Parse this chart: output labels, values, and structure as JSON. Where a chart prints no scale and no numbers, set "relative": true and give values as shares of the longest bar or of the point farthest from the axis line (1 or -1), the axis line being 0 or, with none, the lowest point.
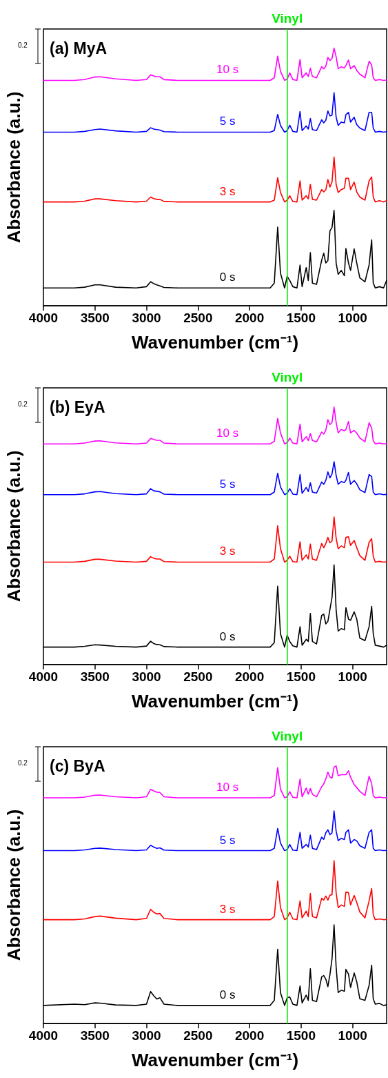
{
  "chart_data": [
    {
      "type": "line",
      "title": "(a) MyA",
      "xlabel": "Wavenumber (cm⁻¹)",
      "ylabel": "Absorbance (a.u.)",
      "relative": true,
      "line_style": "solid",
      "marker": "none",
      "xlim": [
        4000,
        670
      ],
      "xticks": [
        4000,
        3500,
        3000,
        2500,
        2000,
        1500,
        1000
      ],
      "ref_lines": [
        {
          "axis": "x",
          "value": 1635,
          "label": "Vinyl",
          "color": "#00ee00"
        }
      ],
      "annotations": [
        "0.2"
      ],
      "x": [
        4000,
        3700,
        3600,
        3500,
        3450,
        3300,
        3100,
        3000,
        2960,
        2930,
        2900,
        2870,
        2830,
        2700,
        2000,
        1800,
        1760,
        1727,
        1700,
        1660,
        1635,
        1610,
        1580,
        1540,
        1510,
        1490,
        1450,
        1430,
        1410,
        1390,
        1350,
        1300,
        1280,
        1260,
        1240,
        1220,
        1200,
        1180,
        1160,
        1140,
        1110,
        1080,
        1065,
        1040,
        1020,
        985,
        960,
        930,
        880,
        840,
        815,
        800,
        780,
        740,
        700,
        670
      ],
      "series": [
        {
          "name": "0 s",
          "color": "#000000",
          "values": [
            0.069,
            0.069,
            0.072,
            0.081,
            0.081,
            0.072,
            0.069,
            0.074,
            0.093,
            0.086,
            0.081,
            0.077,
            0.071,
            0.069,
            0.069,
            0.069,
            0.088,
            0.305,
            0.127,
            0.069,
            0.114,
            0.098,
            0.074,
            0.069,
            0.158,
            0.074,
            0.148,
            0.098,
            0.206,
            0.088,
            0.083,
            0.177,
            0.204,
            0.166,
            0.175,
            0.291,
            0.303,
            0.37,
            0.166,
            0.122,
            0.137,
            0.117,
            0.222,
            0.166,
            0.137,
            0.221,
            0.166,
            0.108,
            0.093,
            0.158,
            0.256,
            0.088,
            0.069,
            0.074,
            0.069,
            0.098
          ]
        },
        {
          "name": "3 s",
          "color": "#ff0000",
          "values": [
            0.403,
            0.403,
            0.406,
            0.415,
            0.415,
            0.408,
            0.403,
            0.406,
            0.422,
            0.416,
            0.413,
            0.413,
            0.405,
            0.403,
            0.403,
            0.403,
            0.41,
            0.497,
            0.44,
            0.403,
            0.41,
            0.427,
            0.405,
            0.403,
            0.485,
            0.41,
            0.427,
            0.415,
            0.471,
            0.413,
            0.41,
            0.451,
            0.442,
            0.45,
            0.49,
            0.461,
            0.48,
            0.577,
            0.471,
            0.44,
            0.451,
            0.456,
            0.495,
            0.495,
            0.451,
            0.48,
            0.442,
            0.422,
            0.41,
            0.485,
            0.5,
            0.422,
            0.403,
            0.408,
            0.403,
            0.408
          ]
        },
        {
          "name": "5 s",
          "color": "#0000ff",
          "values": [
            0.674,
            0.674,
            0.677,
            0.684,
            0.686,
            0.679,
            0.674,
            0.677,
            0.691,
            0.686,
            0.684,
            0.682,
            0.676,
            0.674,
            0.674,
            0.674,
            0.68,
            0.743,
            0.7,
            0.674,
            0.68,
            0.701,
            0.677,
            0.674,
            0.754,
            0.68,
            0.698,
            0.686,
            0.727,
            0.684,
            0.68,
            0.722,
            0.71,
            0.72,
            0.756,
            0.737,
            0.74,
            0.827,
            0.732,
            0.7,
            0.713,
            0.71,
            0.742,
            0.751,
            0.713,
            0.732,
            0.703,
            0.69,
            0.68,
            0.751,
            0.751,
            0.69,
            0.674,
            0.677,
            0.674,
            0.676
          ]
        },
        {
          "name": "10 s",
          "color": "#ff00ff",
          "values": [
            0.875,
            0.875,
            0.878,
            0.888,
            0.889,
            0.881,
            0.875,
            0.878,
            0.896,
            0.892,
            0.889,
            0.889,
            0.878,
            0.875,
            0.875,
            0.875,
            0.885,
            0.969,
            0.91,
            0.875,
            0.88,
            0.904,
            0.878,
            0.875,
            0.956,
            0.885,
            0.904,
            0.89,
            0.922,
            0.89,
            0.885,
            0.928,
            0.92,
            0.93,
            0.964,
            0.952,
            0.96,
            1.0,
            0.967,
            0.92,
            0.928,
            0.923,
            0.933,
            0.954,
            0.92,
            0.932,
            0.914,
            0.899,
            0.885,
            0.949,
            0.935,
            0.885,
            0.875,
            0.878,
            0.875,
            0.876
          ]
        }
      ]
    },
    {
      "type": "line",
      "title": "(b) EyA",
      "xlabel": "Wavenumber (cm⁻¹)",
      "ylabel": "Absorbance (a.u.)",
      "relative": true,
      "line_style": "solid",
      "marker": "none",
      "xlim": [
        4000,
        670
      ],
      "xticks": [
        4000,
        3500,
        3000,
        2500,
        2000,
        1500,
        1000
      ],
      "ref_lines": [
        {
          "axis": "x",
          "value": 1635,
          "label": "Vinyl",
          "color": "#00ee00"
        }
      ],
      "annotations": [
        "0.2"
      ],
      "x": [
        4000,
        3700,
        3600,
        3500,
        3450,
        3300,
        3100,
        3000,
        2960,
        2930,
        2900,
        2870,
        2830,
        2700,
        2000,
        1800,
        1760,
        1727,
        1700,
        1660,
        1635,
        1610,
        1580,
        1540,
        1510,
        1490,
        1450,
        1430,
        1410,
        1390,
        1350,
        1300,
        1280,
        1260,
        1240,
        1220,
        1200,
        1180,
        1160,
        1140,
        1110,
        1080,
        1065,
        1040,
        1020,
        985,
        960,
        930,
        880,
        840,
        815,
        800,
        780,
        740,
        700,
        670
      ],
      "series": [
        {
          "name": "0 s",
          "color": "#000000",
          "values": [
            0.068,
            0.068,
            0.071,
            0.077,
            0.076,
            0.071,
            0.068,
            0.072,
            0.091,
            0.082,
            0.078,
            0.077,
            0.07,
            0.068,
            0.068,
            0.068,
            0.085,
            0.305,
            0.12,
            0.068,
            0.114,
            0.09,
            0.073,
            0.068,
            0.147,
            0.075,
            0.098,
            0.09,
            0.199,
            0.09,
            0.08,
            0.191,
            0.196,
            0.158,
            0.168,
            0.214,
            0.26,
            0.387,
            0.214,
            0.13,
            0.14,
            0.135,
            0.221,
            0.177,
            0.172,
            0.205,
            0.177,
            0.103,
            0.093,
            0.147,
            0.226,
            0.121,
            0.075,
            0.072,
            0.068,
            0.075
          ]
        },
        {
          "name": "3 s",
          "color": "#ff0000",
          "values": [
            0.398,
            0.398,
            0.401,
            0.409,
            0.409,
            0.402,
            0.398,
            0.401,
            0.419,
            0.413,
            0.41,
            0.41,
            0.4,
            0.398,
            0.398,
            0.398,
            0.41,
            0.539,
            0.45,
            0.398,
            0.405,
            0.421,
            0.4,
            0.398,
            0.477,
            0.405,
            0.426,
            0.41,
            0.468,
            0.41,
            0.405,
            0.47,
            0.454,
            0.47,
            0.494,
            0.473,
            0.48,
            0.573,
            0.491,
            0.45,
            0.461,
            0.454,
            0.494,
            0.496,
            0.463,
            0.482,
            0.454,
            0.423,
            0.405,
            0.475,
            0.489,
            0.42,
            0.398,
            0.401,
            0.398,
            0.399
          ]
        },
        {
          "name": "5 s",
          "color": "#0000ff",
          "values": [
            0.66,
            0.66,
            0.663,
            0.671,
            0.672,
            0.664,
            0.66,
            0.663,
            0.683,
            0.675,
            0.673,
            0.671,
            0.662,
            0.66,
            0.66,
            0.66,
            0.67,
            0.743,
            0.69,
            0.66,
            0.665,
            0.683,
            0.662,
            0.66,
            0.738,
            0.665,
            0.688,
            0.672,
            0.706,
            0.67,
            0.666,
            0.709,
            0.7,
            0.715,
            0.748,
            0.725,
            0.74,
            0.788,
            0.735,
            0.7,
            0.711,
            0.707,
            0.716,
            0.746,
            0.7,
            0.715,
            0.702,
            0.679,
            0.668,
            0.738,
            0.73,
            0.67,
            0.66,
            0.663,
            0.66,
            0.661
          ]
        },
        {
          "name": "10 s",
          "color": "#ff00ff",
          "values": [
            0.857,
            0.857,
            0.86,
            0.868,
            0.869,
            0.861,
            0.857,
            0.86,
            0.878,
            0.874,
            0.871,
            0.871,
            0.86,
            0.857,
            0.857,
            0.857,
            0.867,
            0.956,
            0.9,
            0.857,
            0.862,
            0.88,
            0.86,
            0.857,
            0.934,
            0.865,
            0.885,
            0.87,
            0.897,
            0.87,
            0.865,
            0.903,
            0.895,
            0.91,
            0.951,
            0.932,
            0.94,
            1.0,
            0.941,
            0.9,
            0.913,
            0.908,
            0.913,
            0.944,
            0.9,
            0.909,
            0.899,
            0.88,
            0.865,
            0.939,
            0.919,
            0.87,
            0.857,
            0.86,
            0.857,
            0.858
          ]
        }
      ]
    },
    {
      "type": "line",
      "title": "(c) ByA",
      "xlabel": "Wavenumber (cm⁻¹)",
      "ylabel": "Absorbance (a.u.)",
      "relative": true,
      "line_style": "solid",
      "marker": "none",
      "xlim": [
        4000,
        670
      ],
      "xticks": [
        4000,
        3500,
        3000,
        2500,
        2000,
        1500,
        1000
      ],
      "ref_lines": [
        {
          "axis": "x",
          "value": 1635,
          "label": "Vinyl",
          "color": "#00ee00"
        }
      ],
      "annotations": [
        "0.2"
      ],
      "x": [
        4000,
        3700,
        3600,
        3500,
        3450,
        3300,
        3100,
        3000,
        2960,
        2930,
        2900,
        2870,
        2830,
        2700,
        2000,
        1800,
        1760,
        1727,
        1700,
        1660,
        1635,
        1610,
        1580,
        1540,
        1510,
        1490,
        1450,
        1430,
        1410,
        1390,
        1350,
        1300,
        1280,
        1260,
        1240,
        1220,
        1200,
        1180,
        1160,
        1140,
        1110,
        1080,
        1065,
        1040,
        1020,
        985,
        960,
        930,
        880,
        840,
        815,
        800,
        780,
        740,
        700,
        670
      ],
      "series": [
        {
          "name": "0 s",
          "color": "#000000",
          "values": [
            0.07,
            0.075,
            0.073,
            0.08,
            0.079,
            0.072,
            0.07,
            0.075,
            0.124,
            0.108,
            0.095,
            0.1,
            0.075,
            0.07,
            0.07,
            0.07,
            0.09,
            0.288,
            0.12,
            0.07,
            0.1,
            0.103,
            0.075,
            0.07,
            0.146,
            0.08,
            0.11,
            0.09,
            0.213,
            0.09,
            0.085,
            0.181,
            0.186,
            0.172,
            0.143,
            0.19,
            0.25,
            0.383,
            0.22,
            0.12,
            0.129,
            0.125,
            0.21,
            0.192,
            0.14,
            0.196,
            0.162,
            0.096,
            0.09,
            0.148,
            0.226,
            0.096,
            0.075,
            0.078,
            0.07,
            0.072
          ]
        },
        {
          "name": "3 s",
          "color": "#ff0000",
          "values": [
            0.403,
            0.403,
            0.406,
            0.415,
            0.417,
            0.409,
            0.403,
            0.408,
            0.443,
            0.432,
            0.425,
            0.427,
            0.408,
            0.403,
            0.403,
            0.403,
            0.415,
            0.553,
            0.45,
            0.403,
            0.41,
            0.432,
            0.406,
            0.403,
            0.476,
            0.41,
            0.436,
            0.415,
            0.505,
            0.415,
            0.41,
            0.486,
            0.479,
            0.495,
            0.479,
            0.498,
            0.5,
            0.632,
            0.508,
            0.45,
            0.46,
            0.455,
            0.51,
            0.508,
            0.46,
            0.497,
            0.47,
            0.433,
            0.41,
            0.476,
            0.524,
            0.422,
            0.403,
            0.406,
            0.403,
            0.404
          ]
        },
        {
          "name": "5 s",
          "color": "#0000ff",
          "values": [
            0.671,
            0.671,
            0.674,
            0.68,
            0.681,
            0.675,
            0.671,
            0.674,
            0.692,
            0.685,
            0.68,
            0.682,
            0.673,
            0.671,
            0.671,
            0.671,
            0.68,
            0.757,
            0.7,
            0.671,
            0.675,
            0.695,
            0.673,
            0.671,
            0.742,
            0.68,
            0.695,
            0.685,
            0.731,
            0.68,
            0.675,
            0.723,
            0.715,
            0.74,
            0.752,
            0.733,
            0.74,
            0.825,
            0.747,
            0.71,
            0.719,
            0.714,
            0.742,
            0.752,
            0.7,
            0.714,
            0.709,
            0.69,
            0.68,
            0.742,
            0.752,
            0.68,
            0.671,
            0.674,
            0.671,
            0.672
          ]
        },
        {
          "name": "10 s",
          "color": "#ff00ff",
          "values": [
            0.876,
            0.876,
            0.879,
            0.886,
            0.887,
            0.88,
            0.876,
            0.88,
            0.909,
            0.903,
            0.898,
            0.897,
            0.88,
            0.876,
            0.876,
            0.876,
            0.885,
            0.993,
            0.91,
            0.876,
            0.88,
            0.9,
            0.878,
            0.876,
            0.949,
            0.88,
            0.914,
            0.89,
            0.912,
            0.89,
            0.88,
            0.919,
            0.93,
            0.95,
            0.976,
            0.957,
            0.952,
            0.995,
            1.0,
            0.962,
            0.966,
            0.966,
            0.966,
            0.981,
            0.956,
            0.928,
            0.916,
            0.901,
            0.885,
            0.96,
            0.931,
            0.885,
            0.876,
            0.879,
            0.876,
            0.877
          ]
        }
      ]
    }
  ]
}
